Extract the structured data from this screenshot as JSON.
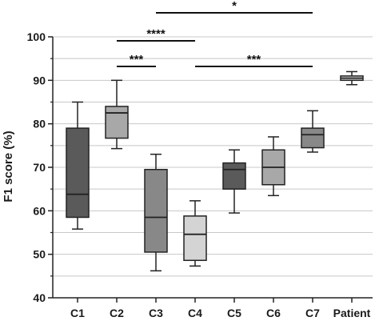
{
  "chart_data": {
    "type": "box",
    "title": "",
    "xlabel": "",
    "ylabel": "F1 score (%)",
    "ylim": [
      40,
      100
    ],
    "yticks": [
      40,
      50,
      60,
      70,
      80,
      90,
      100
    ],
    "grid": "horizontal",
    "categories": [
      "C1",
      "C2",
      "C3",
      "C4",
      "C5",
      "C6",
      "C7",
      "Patient"
    ],
    "boxes": [
      {
        "label": "C1",
        "min": 55.8,
        "q1": 58.5,
        "median": 63.8,
        "q3": 79.0,
        "max": 85.0,
        "color": "#5a5a5a"
      },
      {
        "label": "C2",
        "min": 74.3,
        "q1": 76.7,
        "median": 82.5,
        "q3": 84.0,
        "max": 90.0,
        "color": "#a8a8a8"
      },
      {
        "label": "C3",
        "min": 46.2,
        "q1": 50.5,
        "median": 58.5,
        "q3": 69.5,
        "max": 73.0,
        "color": "#888888"
      },
      {
        "label": "C4",
        "min": 47.3,
        "q1": 48.6,
        "median": 54.6,
        "q3": 58.8,
        "max": 62.3,
        "color": "#d4d4d4"
      },
      {
        "label": "C5",
        "min": 59.5,
        "q1": 65.0,
        "median": 69.5,
        "q3": 71.0,
        "max": 74.0,
        "color": "#5a5a5a"
      },
      {
        "label": "C6",
        "min": 63.5,
        "q1": 66.0,
        "median": 70.0,
        "q3": 74.0,
        "max": 77.0,
        "color": "#a8a8a8"
      },
      {
        "label": "C7",
        "min": 73.5,
        "q1": 74.5,
        "median": 77.5,
        "q3": 79.0,
        "max": 83.0,
        "color": "#888888"
      },
      {
        "label": "Patient",
        "min": 89.0,
        "q1": 90.0,
        "median": 90.5,
        "q3": 91.0,
        "max": 92.0,
        "color": "#d4d4d4"
      }
    ],
    "significance": [
      {
        "from": "C3",
        "to": "C7",
        "label": "*"
      },
      {
        "from": "C2",
        "to": "C4",
        "label": "****"
      },
      {
        "from": "C2",
        "to": "C3",
        "label": "***"
      },
      {
        "from": "C4",
        "to": "C7",
        "label": "***"
      }
    ]
  }
}
